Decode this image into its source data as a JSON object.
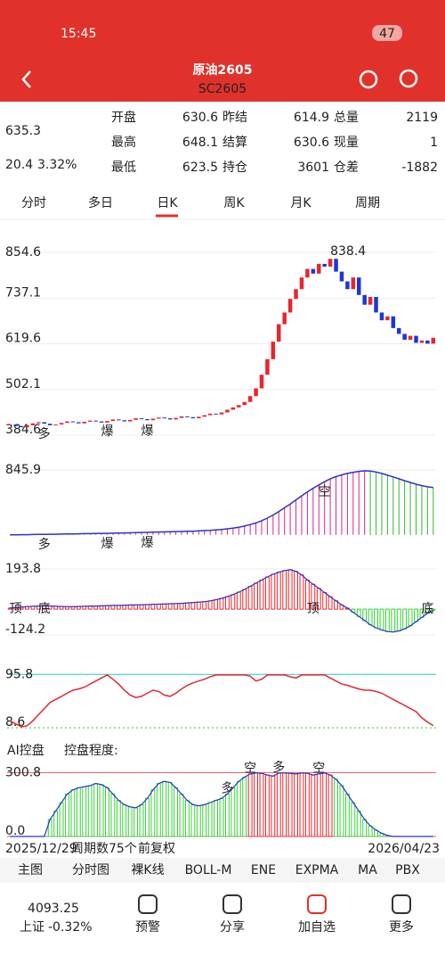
{
  "status": {
    "time": "15:45",
    "battery": "47"
  },
  "header": {
    "title": "原油2605",
    "subtitle": "SC2605"
  },
  "quote": {
    "price": 635.3,
    "change": "20.4",
    "percent": "3.32%",
    "rows": [
      [
        "开盘",
        630.6,
        "昨结",
        614.9,
        "总量",
        2119
      ],
      [
        "最高",
        648.1,
        "结算",
        630.6,
        "现量",
        1
      ],
      [
        "最低",
        623.5,
        "持仓",
        3601,
        "仓差",
        -1882
      ]
    ]
  },
  "tabs": [
    "分时",
    "多日",
    "日K",
    "周K",
    "月K",
    "周期"
  ],
  "chart_data": [
    {
      "type": "candle",
      "ylim": [
        384.6,
        854.6
      ],
      "yticks": [
        854.6,
        737.1,
        619.6,
        502.1,
        384.6
      ],
      "up_color": "#e8262b",
      "down_color": "#1e35d8",
      "values": [
        412,
        408,
        405,
        410,
        415,
        418,
        414,
        410,
        412,
        416,
        420,
        418,
        415,
        419,
        422,
        420,
        417,
        421,
        425,
        423,
        420,
        424,
        428,
        426,
        423,
        427,
        430,
        428,
        425,
        429,
        433,
        431,
        428,
        432,
        436,
        440,
        438,
        443,
        450,
        456,
        462,
        470,
        485,
        505,
        540,
        580,
        625,
        670,
        700,
        735,
        760,
        790,
        812,
        800,
        825,
        818,
        838,
        805,
        780,
        760,
        790,
        745,
        720,
        740,
        700,
        680,
        690,
        660,
        645,
        630,
        640,
        622,
        628,
        620,
        635
      ],
      "annotations": [
        {
          "text": "多",
          "x": 6
        },
        {
          "text": "爆",
          "x": 17
        },
        {
          "text": "爆",
          "x": 24
        },
        {
          "text": "838.4",
          "x": 56
        }
      ]
    },
    {
      "type": "line",
      "ylim": [
        380,
        845.9
      ],
      "yticks": [
        845.9
      ],
      "color": "#2a36c8",
      "up_color": "#d9268a",
      "down_color": "#2fb82f",
      "values": [
        400,
        400,
        401,
        401,
        402,
        403,
        403,
        404,
        404,
        405,
        406,
        406,
        407,
        408,
        408,
        409,
        410,
        410,
        411,
        412,
        413,
        414,
        415,
        416,
        417,
        418,
        419,
        420,
        421,
        422,
        423,
        424,
        425,
        427,
        429,
        431,
        434,
        437,
        441,
        446,
        452,
        460,
        470,
        482,
        497,
        515,
        536,
        560,
        586,
        612,
        640,
        668,
        695,
        720,
        743,
        765,
        785,
        800,
        812,
        822,
        830,
        836,
        840,
        838,
        832,
        822,
        810,
        798,
        785,
        772,
        760,
        748,
        738,
        730,
        725
      ],
      "annotations": [
        {
          "text": "多",
          "x": 6
        },
        {
          "text": "爆",
          "x": 17
        },
        {
          "text": "爆",
          "x": 24
        },
        {
          "text": "空",
          "x": 55
        }
      ]
    },
    {
      "type": "histogram",
      "ylim": [
        -124.2,
        193.8
      ],
      "yticks": [
        193.8,
        -124.2
      ],
      "up_color": "#e8262b",
      "down_color": "#2fd02f",
      "values": [
        5,
        8,
        10,
        12,
        14,
        15,
        16,
        15,
        14,
        13,
        12,
        12,
        13,
        14,
        15,
        15,
        16,
        17,
        18,
        18,
        19,
        20,
        20,
        21,
        22,
        23,
        24,
        25,
        26,
        27,
        28,
        30,
        32,
        34,
        36,
        40,
        45,
        52,
        60,
        70,
        82,
        95,
        110,
        125,
        140,
        155,
        168,
        178,
        186,
        190,
        182,
        165,
        140,
        120,
        100,
        80,
        60,
        40,
        20,
        5,
        -15,
        -35,
        -55,
        -75,
        -90,
        -100,
        -108,
        -110,
        -105,
        -95,
        -80,
        -60,
        -40,
        -20,
        -5
      ],
      "annotations": [
        {
          "text": "顶",
          "x": 1
        },
        {
          "text": "底",
          "x": 6
        },
        {
          "text": "顶",
          "x": 53
        },
        {
          "text": "底",
          "x": 73
        }
      ]
    },
    {
      "type": "line",
      "ylim": [
        0,
        105
      ],
      "yticks": [
        95.8,
        8.6
      ],
      "color": "#e8262b",
      "values": [
        20,
        15,
        10,
        12,
        20,
        30,
        40,
        50,
        55,
        60,
        65,
        70,
        72,
        75,
        80,
        85,
        90,
        95,
        88,
        80,
        70,
        62,
        58,
        60,
        65,
        70,
        68,
        62,
        60,
        65,
        72,
        78,
        82,
        85,
        88,
        92,
        95,
        95,
        95,
        95,
        95,
        95,
        93,
        85,
        88,
        95,
        95,
        95,
        95,
        92,
        90,
        95,
        95,
        95,
        95,
        95,
        90,
        85,
        80,
        78,
        75,
        72,
        70,
        70,
        68,
        65,
        60,
        55,
        50,
        45,
        40,
        35,
        25,
        18,
        12
      ],
      "annotations": []
    },
    {
      "type": "ai",
      "title": "AI控盘",
      "label": "控盘程度:",
      "ylim": [
        0,
        320
      ],
      "yticks": [
        300.8,
        {
          "value": 0,
          "label": "0.0"
        }
      ],
      "up_color": "#e8262b",
      "down_color": "#3ad13a",
      "values": [
        0,
        0,
        0,
        0,
        0,
        0,
        0,
        80,
        120,
        160,
        200,
        220,
        230,
        235,
        240,
        250,
        245,
        230,
        200,
        170,
        150,
        140,
        135,
        150,
        180,
        220,
        250,
        260,
        255,
        230,
        200,
        170,
        150,
        145,
        150,
        160,
        170,
        180,
        200,
        230,
        260,
        280,
        295,
        300,
        298,
        290,
        285,
        300,
        300,
        298,
        295,
        300,
        298,
        290,
        295,
        300,
        290,
        270,
        240,
        200,
        160,
        120,
        80,
        50,
        30,
        15,
        5,
        0,
        0,
        0,
        0,
        0,
        0,
        0,
        0
      ],
      "annotations": [
        {
          "text": "多",
          "x": 38
        },
        {
          "text": "空",
          "x": 42
        },
        {
          "text": "多",
          "x": 47
        },
        {
          "text": "空",
          "x": 54
        }
      ]
    }
  ],
  "date_bar": {
    "start": "2025/12/29",
    "count": "周期数75个",
    "adjust": "前复权",
    "end": "2026/04/23"
  },
  "indicator_tabs": [
    "主图",
    "分时图",
    "裸K线",
    "BOLL-M",
    "ENE",
    "EXPMA",
    "MA",
    "PBX"
  ],
  "bottom_bar": {
    "index": "4093.25",
    "index_name": "上证",
    "index_change": "-0.32%",
    "items": [
      "预警",
      "分享",
      "加自选",
      "更多"
    ]
  }
}
